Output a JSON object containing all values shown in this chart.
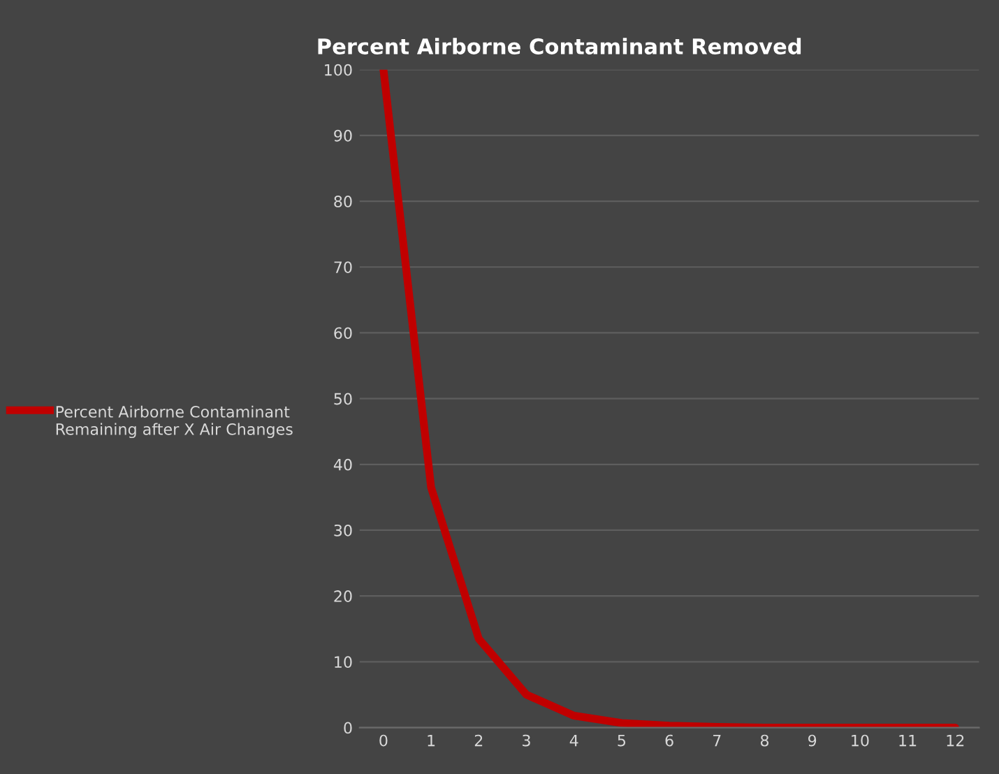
{
  "chart_data": {
    "type": "line",
    "title": "Percent Airborne Contaminant Removed",
    "categories": [
      "0",
      "1",
      "2",
      "3",
      "4",
      "5",
      "6",
      "7",
      "8",
      "9",
      "10",
      "11",
      "12"
    ],
    "series": [
      {
        "name": "Percent Airborne Contaminant Remaining after X Air Changes",
        "color": "#c00000",
        "values": [
          100,
          36.5,
          13.5,
          5,
          1.8,
          0.7,
          0.3,
          0.1,
          0,
          0,
          0,
          0,
          0
        ]
      }
    ],
    "ylim": [
      0,
      100
    ],
    "yticks": [
      0,
      10,
      20,
      30,
      40,
      50,
      60,
      70,
      80,
      90,
      100
    ],
    "grid": "y",
    "legend": "left",
    "marker": "none",
    "line_style": "solid"
  }
}
